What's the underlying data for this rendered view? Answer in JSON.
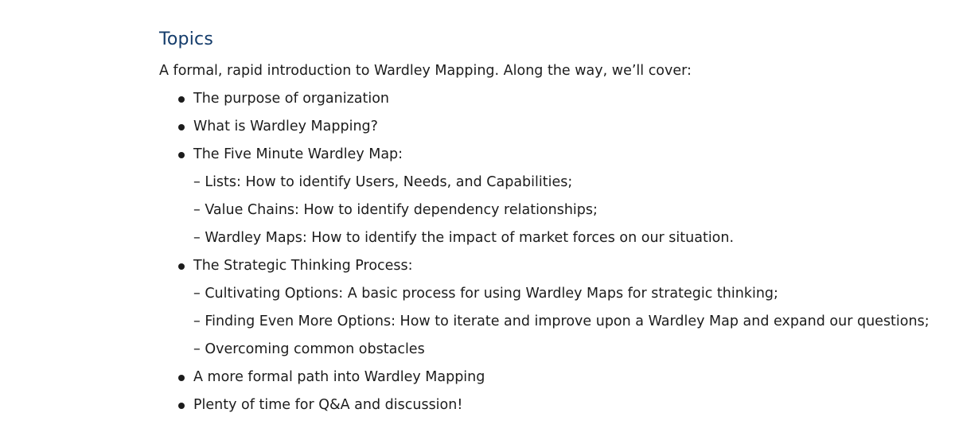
{
  "topics": {
    "heading": "Topics",
    "intro": "A formal, rapid introduction to Wardley Mapping. Along the way, we’ll cover:",
    "items": [
      {
        "kind": "bullet",
        "text": "The purpose of organization"
      },
      {
        "kind": "bullet",
        "text": "What is Wardley Mapping?"
      },
      {
        "kind": "bullet",
        "text": "The Five Minute Wardley Map:"
      },
      {
        "kind": "sub",
        "text": "– Lists: How to identify Users, Needs, and Capabilities;"
      },
      {
        "kind": "sub",
        "text": "– Value Chains: How to identify dependency relationships;"
      },
      {
        "kind": "sub",
        "text": "– Wardley Maps: How to identify the impact of market forces on our situation."
      },
      {
        "kind": "bullet",
        "text": "The Strategic Thinking Process:"
      },
      {
        "kind": "sub",
        "text": "– Cultivating Options: A basic process for using Wardley Maps for strategic thinking;"
      },
      {
        "kind": "sub",
        "text": "– Finding Even More Options: How to iterate and improve upon a Wardley Map and expand our questions;"
      },
      {
        "kind": "sub",
        "text": "– Overcoming common obstacles"
      },
      {
        "kind": "bullet",
        "text": "A more formal path into Wardley Mapping"
      },
      {
        "kind": "bullet",
        "text": "Plenty of time for Q&A and discussion!"
      }
    ]
  },
  "colors": {
    "heading": "#143c6b",
    "text": "#1c1c1c",
    "background": "#ffffff"
  }
}
